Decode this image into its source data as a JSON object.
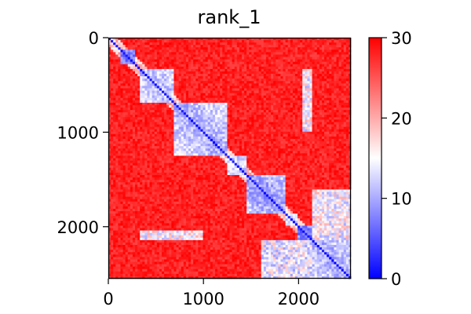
{
  "chart_data": {
    "type": "heatmap",
    "title": "rank_1",
    "xlabel": "",
    "ylabel": "",
    "xlim": [
      0,
      2550
    ],
    "ylim": [
      0,
      2550
    ],
    "y_inverted": true,
    "x_ticks": [
      0,
      1000,
      2000
    ],
    "y_ticks": [
      0,
      1000,
      2000
    ],
    "colorbar": {
      "min": 0,
      "max": 30,
      "ticks": [
        0,
        10,
        20,
        30
      ],
      "colormap": "bwr",
      "colors": {
        "low": "#0000ff",
        "mid": "#ffffff",
        "high": "#ff0000"
      }
    },
    "grid": false,
    "legend": "none",
    "structure": {
      "diagonal_value": 0,
      "background_value": 28,
      "blocks": [
        {
          "range": [
            130,
            270
          ],
          "value": 4
        },
        {
          "range": [
            330,
            700
          ],
          "value": 8
        },
        {
          "range": [
            700,
            1250
          ],
          "value": 7
        },
        {
          "range": [
            1250,
            1450
          ],
          "value": 9
        },
        {
          "range": [
            1450,
            1850
          ],
          "value": 6
        },
        {
          "range": [
            1850,
            2000
          ],
          "value": 10
        },
        {
          "range": [
            2000,
            2150
          ],
          "value": 4
        },
        {
          "range": [
            2150,
            2550
          ],
          "value": 7
        }
      ],
      "off_diagonal_patches": [
        {
          "x": [
            330,
            1000
          ],
          "y": [
            2050,
            2150
          ],
          "value": 10
        },
        {
          "x": [
            2030,
            2130
          ],
          "y": [
            330,
            1000
          ],
          "value": 10
        },
        {
          "x": [
            1600,
            2550
          ],
          "y": [
            2150,
            2550
          ],
          "value": 9
        },
        {
          "x": [
            2150,
            2550
          ],
          "y": [
            1600,
            2150
          ],
          "value": 10
        }
      ]
    }
  }
}
